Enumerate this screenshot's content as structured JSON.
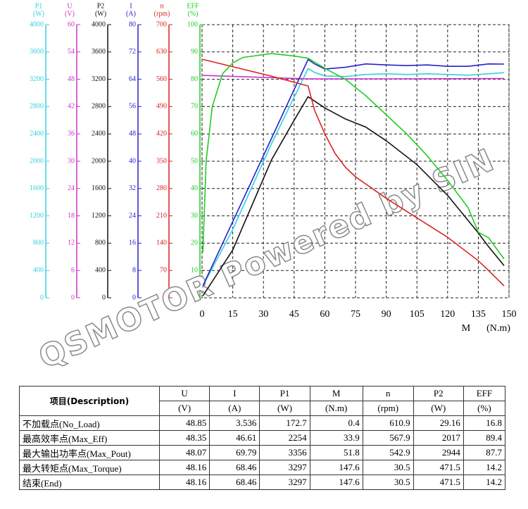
{
  "chart_data": {
    "type": "line",
    "xlim": [
      0,
      150
    ],
    "xticks": [
      0,
      15,
      30,
      45,
      60,
      75,
      90,
      105,
      120,
      135,
      150
    ],
    "xlabel": "M",
    "xunit": "(N.m)",
    "grid": true,
    "watermark": "QSMOTOR Powered by SIN",
    "axes": [
      {
        "label": "P1",
        "unit": "(W)",
        "color": "#33d0dd",
        "ylim": [
          0,
          4000
        ],
        "yticks": [
          0,
          400,
          800,
          1200,
          1600,
          2000,
          2400,
          2800,
          3200,
          3600,
          4000
        ],
        "x": [
          0.4,
          15,
          33.9,
          51.8,
          55,
          60,
          70,
          80,
          90,
          100,
          110,
          120,
          130,
          140,
          147.6
        ],
        "values": [
          172.7,
          1000,
          2254,
          3356,
          3300,
          3250,
          3240,
          3270,
          3280,
          3270,
          3280,
          3270,
          3260,
          3280,
          3297
        ]
      },
      {
        "label": "U",
        "unit": "(V)",
        "color": "#cc33cc",
        "ylim": [
          0,
          60
        ],
        "yticks": [
          0,
          6,
          12,
          18,
          24,
          30,
          36,
          42,
          48,
          54,
          60
        ],
        "x": [
          0.4,
          33.9,
          51.8,
          80,
          120,
          147.6
        ],
        "values": [
          48.85,
          48.35,
          48.07,
          48.1,
          48.12,
          48.16
        ]
      },
      {
        "label": "P2",
        "unit": "(W)",
        "color": "#111111",
        "ylim": [
          0,
          4000
        ],
        "yticks": [
          0,
          400,
          800,
          1200,
          1600,
          2000,
          2400,
          2800,
          3200,
          3600,
          4000
        ],
        "x": [
          0.4,
          15,
          33.9,
          45,
          51.8,
          60,
          70,
          80,
          90,
          105,
          120,
          135,
          140,
          147.6
        ],
        "values": [
          29.16,
          700,
          2017,
          2600,
          2944,
          2780,
          2620,
          2500,
          2300,
          1950,
          1500,
          950,
          750,
          471.5
        ]
      },
      {
        "label": "I",
        "unit": "(A)",
        "color": "#2323cc",
        "ylim": [
          0,
          80
        ],
        "yticks": [
          0,
          8,
          16,
          24,
          32,
          40,
          48,
          56,
          64,
          72,
          80
        ],
        "x": [
          0.4,
          33.9,
          51.8,
          55,
          60,
          70,
          80,
          90,
          100,
          110,
          120,
          130,
          140,
          147.6
        ],
        "values": [
          3.536,
          46.61,
          69.79,
          68.5,
          67,
          67.5,
          68.5,
          68.2,
          68,
          68.2,
          67.8,
          67.8,
          68.5,
          68.46
        ]
      },
      {
        "label": "n",
        "unit": "(rpm)",
        "color": "#dd2222",
        "ylim": [
          0,
          700
        ],
        "yticks": [
          0,
          70,
          140,
          210,
          280,
          350,
          420,
          490,
          560,
          630,
          700
        ],
        "x": [
          0.4,
          33.9,
          51.8,
          55,
          60,
          65,
          70,
          75,
          90,
          105,
          120,
          135,
          140,
          147.6
        ],
        "values": [
          610.9,
          567.9,
          542.9,
          480,
          420,
          370,
          335,
          310,
          255,
          205,
          155,
          95,
          70,
          30.5
        ]
      },
      {
        "label": "EFF",
        "unit": "(%)",
        "color": "#22cc22",
        "ylim": [
          0,
          100
        ],
        "yticks": [
          0,
          10,
          20,
          30,
          40,
          50,
          60,
          70,
          80,
          90,
          100
        ],
        "x": [
          0.4,
          2,
          5,
          10,
          15,
          20,
          33.9,
          45,
          51.8,
          60,
          70,
          80,
          90,
          100,
          110,
          120,
          130,
          135,
          140,
          147.6
        ],
        "values": [
          16.8,
          50,
          70,
          82,
          86,
          88,
          89.4,
          88.5,
          87.7,
          84,
          80,
          74,
          67,
          60,
          52,
          43,
          33,
          24,
          22,
          14.2
        ]
      }
    ]
  },
  "table": {
    "header": "项目(Description)",
    "columns": [
      {
        "name": "U",
        "unit": "(V)"
      },
      {
        "name": "I",
        "unit": "(A)"
      },
      {
        "name": "P1",
        "unit": "(W)"
      },
      {
        "name": "M",
        "unit": "(N.m)"
      },
      {
        "name": "n",
        "unit": "(rpm)"
      },
      {
        "name": "P2",
        "unit": "(W)"
      },
      {
        "name": "EFF",
        "unit": "(%)"
      }
    ],
    "rows": [
      [
        "不加载点(No_Load)",
        48.85,
        3.536,
        172.7,
        0.4,
        610.9,
        29.16,
        16.8
      ],
      [
        "最高效率点(Max_Eff)",
        48.35,
        46.61,
        2254,
        33.9,
        567.9,
        2017,
        89.4
      ],
      [
        "最大输出功率点(Max_Pout)",
        48.07,
        69.79,
        3356,
        51.8,
        542.9,
        2944,
        87.7
      ],
      [
        "最大转矩点(Max_Torque)",
        48.16,
        68.46,
        3297,
        147.6,
        30.5,
        471.5,
        14.2
      ],
      [
        "结束(End)",
        48.16,
        68.46,
        3297,
        147.6,
        30.5,
        471.5,
        14.2
      ]
    ]
  }
}
